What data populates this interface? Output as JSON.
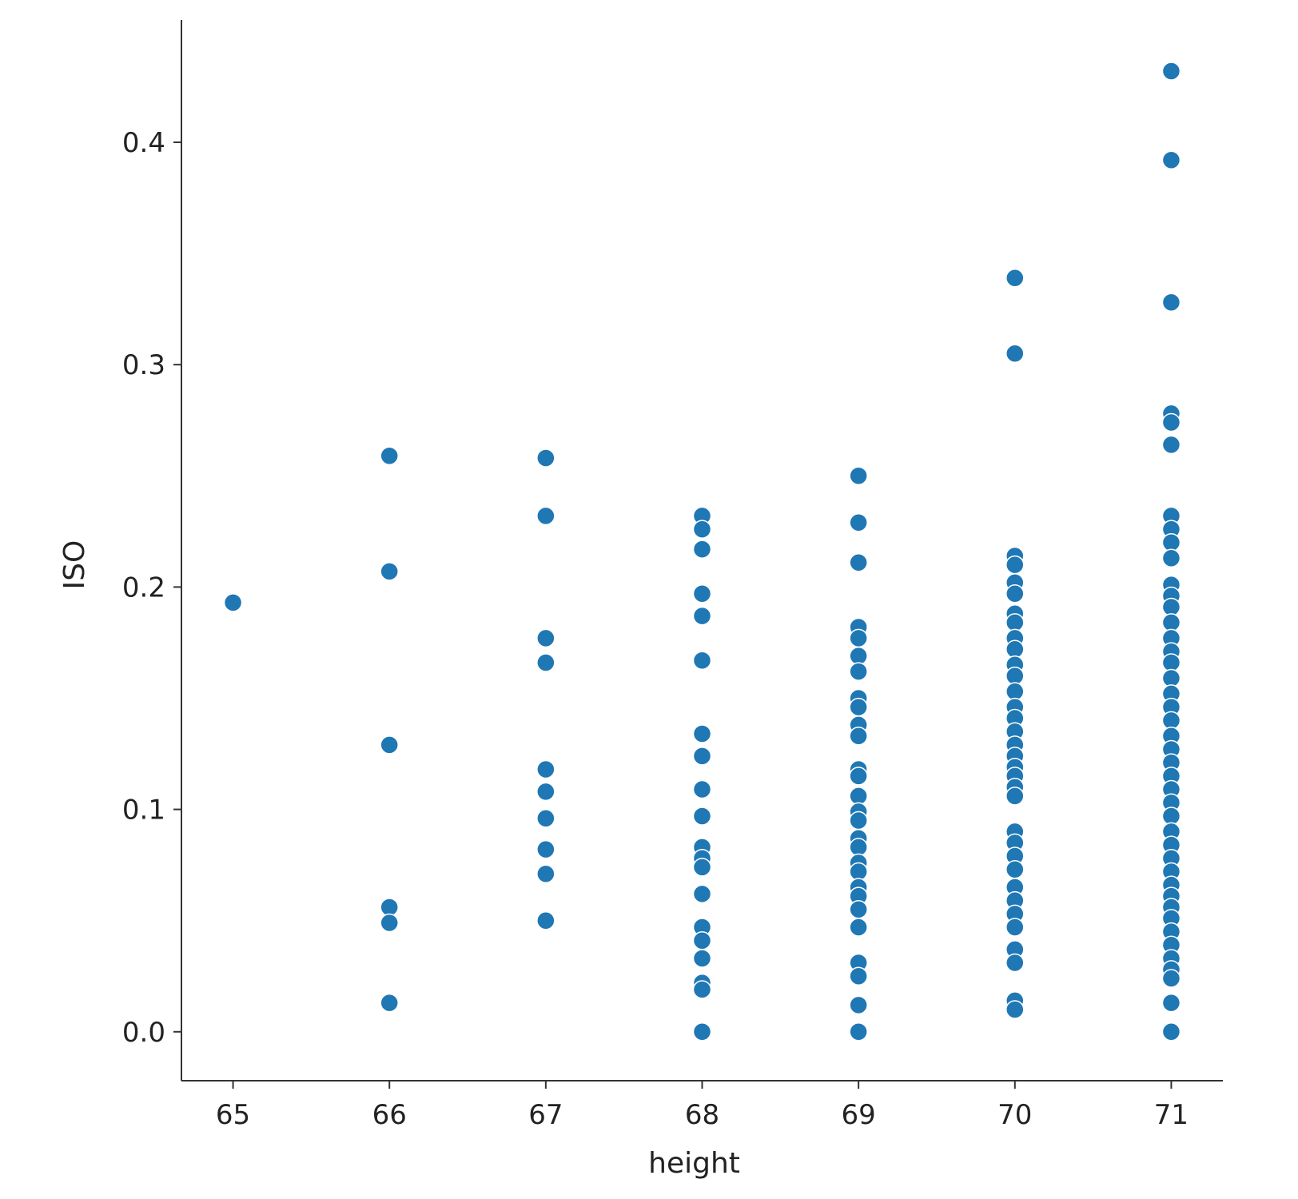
{
  "chart_data": {
    "type": "scatter",
    "title": "",
    "xlabel": "height",
    "ylabel": "ISO",
    "xlim": [
      64.67,
      71.33
    ],
    "ylim": [
      -0.022,
      0.455
    ],
    "xticks": [
      65,
      66,
      67,
      68,
      69,
      70,
      71
    ],
    "xtick_labels": [
      "65",
      "66",
      "67",
      "68",
      "69",
      "70",
      "71"
    ],
    "yticks": [
      0.0,
      0.1,
      0.2,
      0.3,
      0.4
    ],
    "ytick_labels": [
      "0.0",
      "0.1",
      "0.2",
      "0.3",
      "0.4"
    ],
    "grid": false,
    "legend": "none",
    "colors": {
      "point": "#1f77b4"
    },
    "series": [
      {
        "points": [
          [
            65,
            0.193
          ],
          [
            66,
            0.259
          ],
          [
            66,
            0.207
          ],
          [
            66,
            0.129
          ],
          [
            66,
            0.056
          ],
          [
            66,
            0.049
          ],
          [
            66,
            0.013
          ],
          [
            67,
            0.258
          ],
          [
            67,
            0.232
          ],
          [
            67,
            0.177
          ],
          [
            67,
            0.166
          ],
          [
            67,
            0.118
          ],
          [
            67,
            0.108
          ],
          [
            67,
            0.096
          ],
          [
            67,
            0.082
          ],
          [
            67,
            0.071
          ],
          [
            67,
            0.05
          ],
          [
            68,
            0.232
          ],
          [
            68,
            0.226
          ],
          [
            68,
            0.217
          ],
          [
            68,
            0.197
          ],
          [
            68,
            0.187
          ],
          [
            68,
            0.167
          ],
          [
            68,
            0.134
          ],
          [
            68,
            0.124
          ],
          [
            68,
            0.109
          ],
          [
            68,
            0.097
          ],
          [
            68,
            0.083
          ],
          [
            68,
            0.078
          ],
          [
            68,
            0.074
          ],
          [
            68,
            0.062
          ],
          [
            68,
            0.047
          ],
          [
            68,
            0.041
          ],
          [
            68,
            0.033
          ],
          [
            68,
            0.022
          ],
          [
            68,
            0.019
          ],
          [
            68,
            0.0
          ],
          [
            69,
            0.25
          ],
          [
            69,
            0.229
          ],
          [
            69,
            0.211
          ],
          [
            69,
            0.182
          ],
          [
            69,
            0.177
          ],
          [
            69,
            0.169
          ],
          [
            69,
            0.162
          ],
          [
            69,
            0.15
          ],
          [
            69,
            0.146
          ],
          [
            69,
            0.138
          ],
          [
            69,
            0.133
          ],
          [
            69,
            0.118
          ],
          [
            69,
            0.115
          ],
          [
            69,
            0.106
          ],
          [
            69,
            0.099
          ],
          [
            69,
            0.095
          ],
          [
            69,
            0.087
          ],
          [
            69,
            0.083
          ],
          [
            69,
            0.076
          ],
          [
            69,
            0.072
          ],
          [
            69,
            0.065
          ],
          [
            69,
            0.061
          ],
          [
            69,
            0.055
          ],
          [
            69,
            0.047
          ],
          [
            69,
            0.031
          ],
          [
            69,
            0.025
          ],
          [
            69,
            0.012
          ],
          [
            69,
            0.0
          ],
          [
            70,
            0.339
          ],
          [
            70,
            0.305
          ],
          [
            70,
            0.214
          ],
          [
            70,
            0.21
          ],
          [
            70,
            0.202
          ],
          [
            70,
            0.197
          ],
          [
            70,
            0.188
          ],
          [
            70,
            0.184
          ],
          [
            70,
            0.177
          ],
          [
            70,
            0.172
          ],
          [
            70,
            0.165
          ],
          [
            70,
            0.16
          ],
          [
            70,
            0.153
          ],
          [
            70,
            0.146
          ],
          [
            70,
            0.141
          ],
          [
            70,
            0.135
          ],
          [
            70,
            0.129
          ],
          [
            70,
            0.124
          ],
          [
            70,
            0.119
          ],
          [
            70,
            0.115
          ],
          [
            70,
            0.11
          ],
          [
            70,
            0.106
          ],
          [
            70,
            0.09
          ],
          [
            70,
            0.085
          ],
          [
            70,
            0.079
          ],
          [
            70,
            0.073
          ],
          [
            70,
            0.065
          ],
          [
            70,
            0.059
          ],
          [
            70,
            0.053
          ],
          [
            70,
            0.047
          ],
          [
            70,
            0.037
          ],
          [
            70,
            0.031
          ],
          [
            70,
            0.014
          ],
          [
            70,
            0.01
          ],
          [
            71,
            0.432
          ],
          [
            71,
            0.392
          ],
          [
            71,
            0.328
          ],
          [
            71,
            0.278
          ],
          [
            71,
            0.274
          ],
          [
            71,
            0.264
          ],
          [
            71,
            0.232
          ],
          [
            71,
            0.226
          ],
          [
            71,
            0.22
          ],
          [
            71,
            0.213
          ],
          [
            71,
            0.201
          ],
          [
            71,
            0.196
          ],
          [
            71,
            0.191
          ],
          [
            71,
            0.184
          ],
          [
            71,
            0.177
          ],
          [
            71,
            0.171
          ],
          [
            71,
            0.166
          ],
          [
            71,
            0.159
          ],
          [
            71,
            0.152
          ],
          [
            71,
            0.146
          ],
          [
            71,
            0.14
          ],
          [
            71,
            0.133
          ],
          [
            71,
            0.127
          ],
          [
            71,
            0.121
          ],
          [
            71,
            0.115
          ],
          [
            71,
            0.109
          ],
          [
            71,
            0.103
          ],
          [
            71,
            0.097
          ],
          [
            71,
            0.09
          ],
          [
            71,
            0.084
          ],
          [
            71,
            0.078
          ],
          [
            71,
            0.072
          ],
          [
            71,
            0.066
          ],
          [
            71,
            0.061
          ],
          [
            71,
            0.056
          ],
          [
            71,
            0.051
          ],
          [
            71,
            0.045
          ],
          [
            71,
            0.039
          ],
          [
            71,
            0.033
          ],
          [
            71,
            0.028
          ],
          [
            71,
            0.024
          ],
          [
            71,
            0.013
          ],
          [
            71,
            0.0
          ]
        ]
      }
    ]
  }
}
